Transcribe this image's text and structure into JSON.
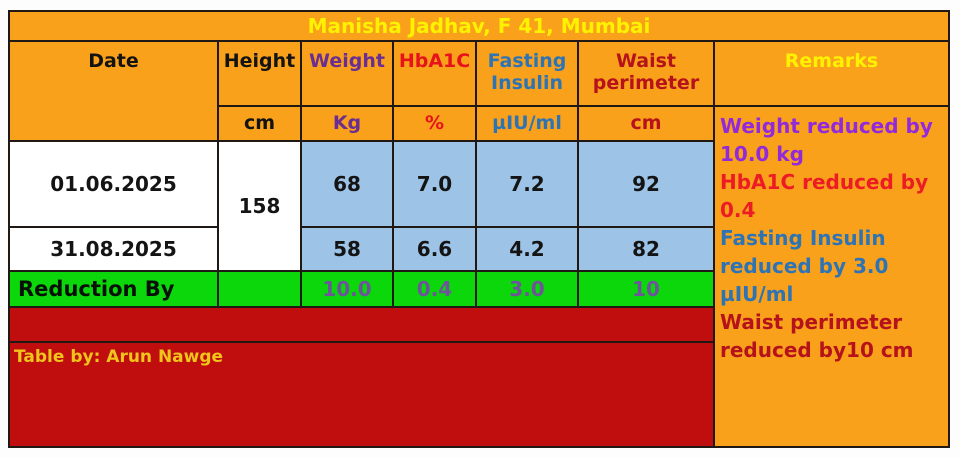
{
  "title": "Manisha Jadhav, F 41, Mumbai",
  "header": {
    "date": "Date",
    "height": "Height",
    "weight": "Weight",
    "hba1c": "HbA1C",
    "fasting_insulin": "Fasting Insulin",
    "waist_perimeter": "Waist perimeter",
    "remarks": "Remarks"
  },
  "units": {
    "height": "cm",
    "weight": "Kg",
    "hba1c": "%",
    "fasting_insulin": "µIU/ml",
    "waist_perimeter": "cm"
  },
  "height_value": "158",
  "rows": [
    {
      "date": "01.06.2025",
      "weight": "68",
      "hba1c": "7.0",
      "fasting_insulin": "7.2",
      "waist_perimeter": "92"
    },
    {
      "date": "31.08.2025",
      "weight": "58",
      "hba1c": "6.6",
      "fasting_insulin": "4.2",
      "waist_perimeter": "82"
    }
  ],
  "reduction": {
    "label": "Reduction By",
    "weight": "10.0",
    "hba1c": "0.4",
    "fasting_insulin": "3.0",
    "waist_perimeter": "10"
  },
  "remarks": [
    {
      "text": "Weight reduced by 10.0 kg",
      "color": "#9229DB"
    },
    {
      "text": "HbA1C reduced by 0.4",
      "color": "#ED1C24"
    },
    {
      "text": "Fasting Insulin reduced by 3.0 µIU/ml",
      "color": "#2E74B5"
    },
    {
      "text": "Waist perimeter reduced by10 cm",
      "color": "#B5121B"
    }
  ],
  "footer": {
    "credit": "Table by: Arun Nawge"
  },
  "colors": {
    "table_background": "#F9A11B",
    "value_cell_background": "#9DC3E6",
    "reduction_row_background": "#0BD70B",
    "footer_background": "#C00D0D",
    "title_text": "#FFF200",
    "weight_text": "#6A2D91",
    "hba1c_text": "#E8121B",
    "fasting_insulin_text": "#2E74B5",
    "waist_text": "#B5121B",
    "reduction_value_text": "#6F549B",
    "footer_text": "#EFC51C",
    "border": "#201812"
  }
}
